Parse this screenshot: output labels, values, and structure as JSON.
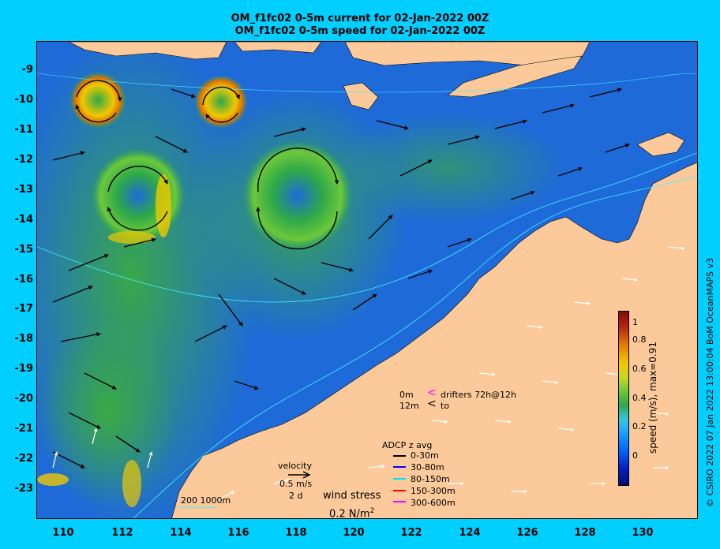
{
  "titles": {
    "line1": "OM_f1fc02 0-5m current for 02-Jan-2022 00Z",
    "line2": "OM_f1fc02 0-5m speed for 02-Jan-2022 00Z"
  },
  "axes": {
    "lat_labels": [
      "-9",
      "-10",
      "-11",
      "-12",
      "-13",
      "-14",
      "-15",
      "-16",
      "-17",
      "-18",
      "-19",
      "-20",
      "-21",
      "-22",
      "-23"
    ],
    "lon_labels": [
      "110",
      "112",
      "114",
      "116",
      "118",
      "120",
      "122",
      "124",
      "126",
      "128",
      "130"
    ]
  },
  "colorbar": {
    "ticks": [
      "1",
      "0.8",
      "0.6",
      "0.4",
      "0.2",
      "0"
    ],
    "label": "speed (m/s), max=0.91"
  },
  "legend": {
    "drifters_line1_left": "0m",
    "drifters_line1_right": "drifters 72h@12h",
    "drifters_line2_left": "12m",
    "drifters_line2_right": "to",
    "adcp_title": "ADCP z avg",
    "adcp_items": [
      {
        "label": "0-30m",
        "color": "#000000"
      },
      {
        "label": "30-80m",
        "color": "#0000ff"
      },
      {
        "label": "80-150m",
        "color": "#00e0ff"
      },
      {
        "label": "150-300m",
        "color": "#ff0000"
      },
      {
        "label": "300-600m",
        "color": "#ff00ff"
      }
    ],
    "velocity_title": "velocity",
    "velocity_scale": "0.5 m/s",
    "velocity_days": "2 d",
    "wind_title": "wind stress",
    "wind_scale": "0.2 N/m",
    "wind_scale_exp": "2",
    "isobaths": "200  1000m"
  },
  "credit": "© CSIRO 2022  07 Jan 2022 13:00:04 BoM OceanMAPS v3",
  "colors": {
    "background": "#00cfff",
    "land": "#fbc99a",
    "ocean_low": "#1e6ad8",
    "ocean_mid": "#2ea84a",
    "ocean_high": "#f0c800",
    "eddy_core": "#c83a10"
  }
}
